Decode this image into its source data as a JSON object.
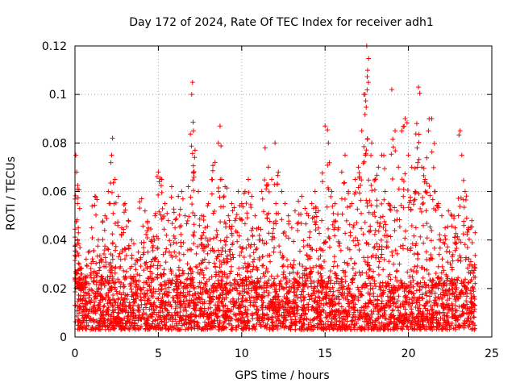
{
  "chart_data": {
    "type": "scatter",
    "title": "Day 172 of 2024, Rate Of TEC Index for receiver adh1",
    "xlabel": "GPS time / hours",
    "ylabel": "ROTI / TECUs",
    "xlim": [
      0,
      25
    ],
    "ylim": [
      0,
      0.12
    ],
    "x_ticks": [
      "0",
      "5",
      "10",
      "15",
      "20",
      "25"
    ],
    "y_ticks": [
      "0",
      "0.02",
      "0.04",
      "0.06",
      "0.08",
      "0.1",
      "0.12"
    ],
    "grid": true,
    "marker": "plus",
    "color": "#ff0000",
    "series": [
      {
        "x": [
          0.05,
          0.1,
          0.15,
          0.2,
          0.25,
          0.3,
          0.45,
          0.6,
          0.8,
          1.0,
          1.2,
          1.4,
          1.6,
          1.8,
          2.0,
          2.2,
          2.25,
          2.4,
          2.6,
          2.8,
          3.0,
          3.2,
          3.4,
          3.6,
          3.8,
          4.0,
          4.2,
          4.4,
          4.6,
          4.8,
          5.0,
          5.2,
          5.4,
          5.6,
          5.8,
          6.0,
          6.2,
          6.4,
          6.6,
          6.8,
          7.0,
          7.05,
          7.1,
          7.2,
          7.4,
          7.6,
          7.8,
          8.0,
          8.2,
          8.4,
          8.6,
          8.7,
          8.8,
          9.0,
          9.2,
          9.4,
          9.6,
          9.8,
          10.0,
          10.2,
          10.4,
          10.6,
          10.8,
          11.0,
          11.2,
          11.4,
          11.6,
          11.8,
          12.0,
          12.2,
          12.4,
          12.6,
          12.8,
          13.0,
          13.2,
          13.4,
          13.6,
          13.8,
          14.0,
          14.2,
          14.4,
          14.6,
          14.8,
          15.0,
          15.2,
          15.4,
          15.6,
          15.8,
          16.0,
          16.2,
          16.4,
          16.6,
          16.8,
          17.0,
          17.2,
          17.4,
          17.5,
          17.55,
          17.6,
          17.8,
          18.0,
          18.2,
          18.4,
          18.6,
          18.8,
          19.0,
          19.2,
          19.4,
          19.6,
          19.8,
          20.0,
          20.2,
          20.4,
          20.5,
          20.6,
          20.8,
          21.0,
          21.2,
          21.4,
          21.6,
          21.8,
          22.0,
          22.2,
          22.4,
          22.6,
          22.8,
          23.0,
          23.1,
          23.2,
          23.4,
          23.6,
          23.8,
          24.0
        ],
        "y": [
          0.075,
          0.068,
          0.055,
          0.045,
          0.03,
          0.02,
          0.015,
          0.025,
          0.035,
          0.045,
          0.058,
          0.04,
          0.032,
          0.05,
          0.06,
          0.075,
          0.082,
          0.065,
          0.058,
          0.045,
          0.055,
          0.048,
          0.04,
          0.03,
          0.035,
          0.057,
          0.052,
          0.045,
          0.04,
          0.05,
          0.068,
          0.065,
          0.055,
          0.048,
          0.062,
          0.045,
          0.058,
          0.06,
          0.05,
          0.062,
          0.1,
          0.105,
          0.085,
          0.077,
          0.06,
          0.05,
          0.045,
          0.055,
          0.065,
          0.072,
          0.08,
          0.087,
          0.065,
          0.062,
          0.05,
          0.055,
          0.048,
          0.06,
          0.055,
          0.06,
          0.065,
          0.058,
          0.05,
          0.045,
          0.06,
          0.078,
          0.07,
          0.065,
          0.08,
          0.068,
          0.06,
          0.055,
          0.05,
          0.045,
          0.052,
          0.056,
          0.058,
          0.053,
          0.05,
          0.055,
          0.06,
          0.052,
          0.048,
          0.087,
          0.08,
          0.06,
          0.055,
          0.045,
          0.068,
          0.075,
          0.06,
          0.055,
          0.065,
          0.07,
          0.085,
          0.1,
          0.12,
          0.11,
          0.105,
          0.08,
          0.065,
          0.07,
          0.075,
          0.06,
          0.055,
          0.102,
          0.085,
          0.07,
          0.085,
          0.09,
          0.075,
          0.07,
          0.06,
          0.088,
          0.103,
          0.07,
          0.065,
          0.085,
          0.09,
          0.06,
          0.055,
          0.05,
          0.045,
          0.052,
          0.05,
          0.045,
          0.05,
          0.085,
          0.075,
          0.06,
          0.045,
          0.048,
          0.043
        ]
      }
    ],
    "baseline_band": [
      0.003,
      0.022
    ]
  }
}
